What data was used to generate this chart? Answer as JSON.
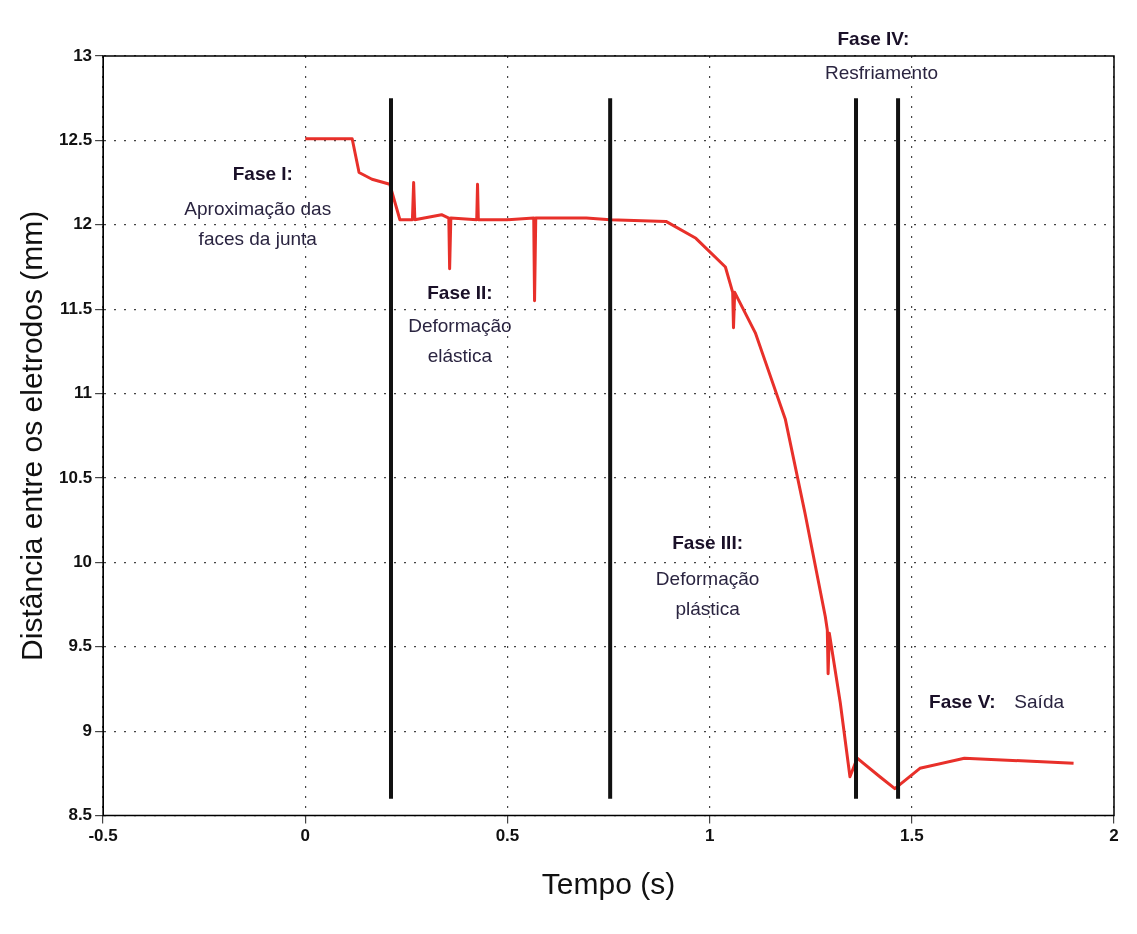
{
  "chart_data": {
    "type": "line",
    "xlabel": "Tempo (s)",
    "ylabel": "Distância entre os eletrodos (mm)",
    "xlim": [
      -0.5,
      2
    ],
    "ylim": [
      8.5,
      13
    ],
    "xticks": [
      -0.5,
      0,
      0.5,
      1,
      1.5,
      2
    ],
    "yticks": [
      8.5,
      9,
      9.5,
      10,
      10.5,
      11,
      11.5,
      12,
      12.5,
      13
    ],
    "grid": true,
    "marker": "none",
    "line_style": "solid",
    "legend": false,
    "series": [
      {
        "color": "#e8302a",
        "x": [
          0,
          0.116,
          0.133,
          0.165,
          0.209,
          0.234,
          0.251,
          0.265,
          0.268,
          0.271,
          0.337,
          0.355,
          0.357,
          0.36,
          0.424,
          0.426,
          0.428,
          0.5,
          0.565,
          0.567,
          0.57,
          0.695,
          0.754,
          0.892,
          0.966,
          1.039,
          1.057,
          1.059,
          1.062,
          1.113,
          1.187,
          1.236,
          1.286,
          1.291,
          1.293,
          1.296,
          1.323,
          1.347,
          1.365,
          1.421,
          1.458,
          1.52,
          1.63,
          1.9
        ],
        "values": [
          12.51,
          12.51,
          12.31,
          12.27,
          12.24,
          12.03,
          12.03,
          12.03,
          12.25,
          12.03,
          12.06,
          12.04,
          11.74,
          12.04,
          12.03,
          12.24,
          12.03,
          12.03,
          12.04,
          11.55,
          12.04,
          12.04,
          12.03,
          12.02,
          11.92,
          11.75,
          11.6,
          11.39,
          11.6,
          11.36,
          10.85,
          10.29,
          9.68,
          9.6,
          9.34,
          9.58,
          9.17,
          8.73,
          8.84,
          8.73,
          8.66,
          8.78,
          8.84,
          8.81
        ]
      },
      {
        "type": "line",
        "color": "#111111",
        "x": [
          0.212,
          0.212
        ],
        "values": [
          8.6,
          12.75
        ]
      },
      {
        "type": "line",
        "color": "#111111",
        "x": [
          0.754,
          0.754
        ],
        "values": [
          8.6,
          12.75
        ]
      },
      {
        "type": "line",
        "color": "#111111",
        "x": [
          1.362,
          1.362
        ],
        "values": [
          8.6,
          12.75
        ]
      },
      {
        "type": "line",
        "color": "#111111",
        "x": [
          1.466,
          1.466
        ],
        "values": [
          8.6,
          12.75
        ]
      }
    ],
    "annotations": [
      "Fase I:",
      "Aproximação das\nfaces da junta",
      "Fase II:",
      "Deformação\nelástica",
      "Fase III:",
      "Deformação\nplástica",
      "Fase IV:",
      "Resfriamento",
      "Fase V:",
      "Saída"
    ]
  }
}
